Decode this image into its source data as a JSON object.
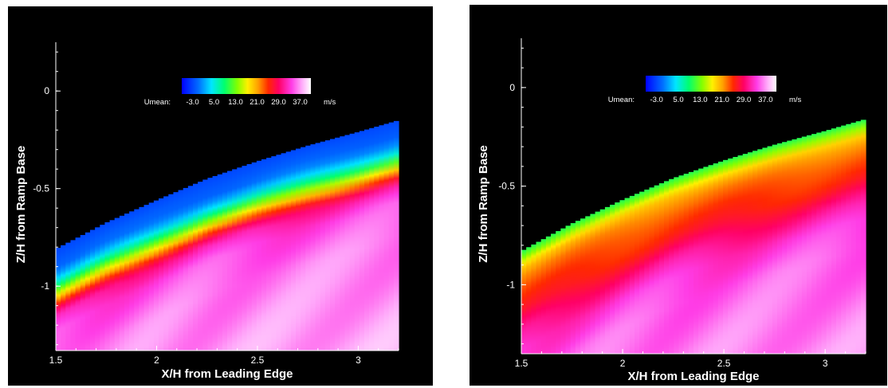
{
  "chart_data": [
    {
      "type": "heatmap",
      "id": "left",
      "xlabel": "X/H from Leading Edge",
      "ylabel": "Z/H from Ramp Base",
      "xlim": [
        1.5,
        3.2
      ],
      "ylim": [
        -1.33,
        0.25
      ],
      "xticks": [
        {
          "value": 1.5,
          "label": "1.5"
        },
        {
          "value": 2,
          "label": "2"
        },
        {
          "value": 2.5,
          "label": "2.5"
        },
        {
          "value": 3,
          "label": "3"
        }
      ],
      "yticks": [
        {
          "value": 0,
          "label": "0"
        },
        {
          "value": -0.5,
          "label": "-0.5"
        },
        {
          "value": -1,
          "label": "-1"
        }
      ],
      "colorbar": {
        "variable": "Umean:",
        "unit": "m/s",
        "tick_labels": [
          "-3.0",
          "5.0",
          "13.0",
          "21.0",
          "29.0",
          "37.0"
        ],
        "tick_values": [
          -3,
          5,
          13,
          21,
          29,
          37
        ],
        "range": [
          -7,
          41
        ]
      },
      "ramp_surface": {
        "x": [
          1.5,
          1.75,
          2.0,
          2.25,
          2.5,
          2.75,
          3.0,
          3.2
        ],
        "z": [
          -0.81,
          -0.675,
          -0.56,
          -0.45,
          -0.36,
          -0.28,
          -0.21,
          -0.15
        ]
      },
      "velocity_profile": [
        {
          "depth": 0.0,
          "umean": -3
        },
        {
          "depth": 0.05,
          "umean": -2
        },
        {
          "depth": 0.1,
          "umean": -1
        },
        {
          "depth": 0.14,
          "umean": 2
        },
        {
          "depth": 0.18,
          "umean": 7
        },
        {
          "depth": 0.21,
          "umean": 12
        },
        {
          "depth": 0.24,
          "umean": 17
        },
        {
          "depth": 0.27,
          "umean": 22
        },
        {
          "depth": 0.3,
          "umean": 27
        },
        {
          "depth": 0.34,
          "umean": 31
        },
        {
          "depth": 0.42,
          "umean": 34
        },
        {
          "depth": 0.6,
          "umean": 36
        },
        {
          "depth": 0.9,
          "umean": 37
        },
        {
          "depth": 1.3,
          "umean": 38
        }
      ],
      "colors": {
        "background": "#000000",
        "foreground": "#ffffff"
      }
    },
    {
      "type": "heatmap",
      "id": "right",
      "xlabel": "X/H from Leading Edge",
      "ylabel": "Z/H from Ramp Base",
      "xlim": [
        1.5,
        3.2
      ],
      "ylim": [
        -1.35,
        0.25
      ],
      "xticks": [
        {
          "value": 1.5,
          "label": "1.5"
        },
        {
          "value": 2,
          "label": "2"
        },
        {
          "value": 2.5,
          "label": "2.5"
        },
        {
          "value": 3,
          "label": "3"
        }
      ],
      "yticks": [
        {
          "value": 0,
          "label": "0"
        },
        {
          "value": -0.5,
          "label": "-0.5"
        },
        {
          "value": -1,
          "label": "-1"
        }
      ],
      "colorbar": {
        "variable": "Umean:",
        "unit": "m/s",
        "tick_labels": [
          "-3.0",
          "5.0",
          "13.0",
          "21.0",
          "29.0",
          "37.0"
        ],
        "tick_values": [
          -3,
          5,
          13,
          21,
          29,
          37
        ],
        "range": [
          -7,
          41
        ]
      },
      "ramp_surface": {
        "x": [
          1.5,
          1.75,
          2.0,
          2.25,
          2.5,
          2.75,
          3.0,
          3.2
        ],
        "z": [
          -0.83,
          -0.69,
          -0.57,
          -0.46,
          -0.37,
          -0.29,
          -0.22,
          -0.16
        ]
      },
      "velocity_profile": [
        {
          "depth": 0.0,
          "umean": 10
        },
        {
          "depth": 0.03,
          "umean": 13
        },
        {
          "depth": 0.06,
          "umean": 17
        },
        {
          "depth": 0.09,
          "umean": 20
        },
        {
          "depth": 0.13,
          "umean": 22
        },
        {
          "depth": 0.2,
          "umean": 24
        },
        {
          "depth": 0.3,
          "umean": 26
        },
        {
          "depth": 0.4,
          "umean": 30
        },
        {
          "depth": 0.5,
          "umean": 33
        },
        {
          "depth": 0.65,
          "umean": 35
        },
        {
          "depth": 0.9,
          "umean": 36
        },
        {
          "depth": 1.3,
          "umean": 37
        }
      ],
      "colors": {
        "background": "#000000",
        "foreground": "#ffffff"
      }
    }
  ]
}
